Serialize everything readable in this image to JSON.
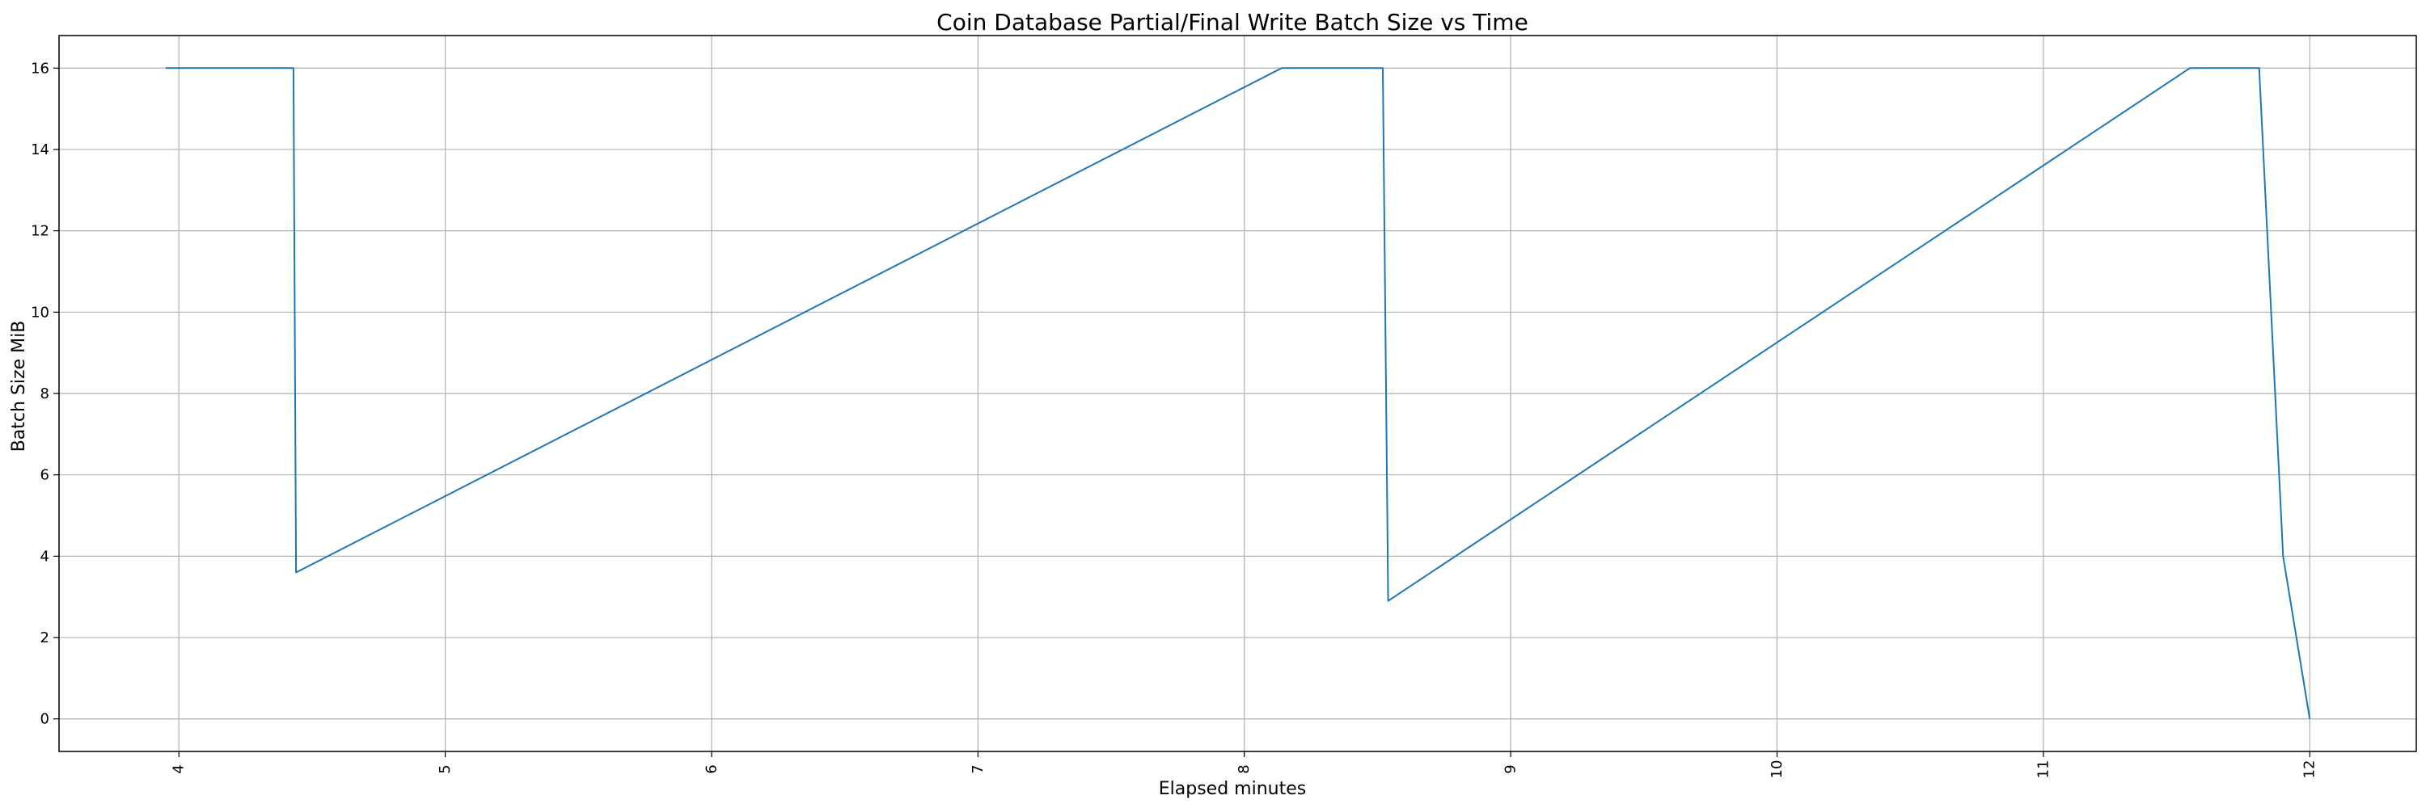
{
  "chart_data": {
    "type": "line",
    "title": "Coin Database Partial/Final Write Batch Size vs Time",
    "xlabel": "Elapsed minutes",
    "ylabel": "Batch Size MiB",
    "xlim": [
      3.55,
      12.4
    ],
    "ylim": [
      -0.8,
      16.8
    ],
    "xticks": [
      4,
      5,
      6,
      7,
      8,
      9,
      10,
      11,
      12
    ],
    "yticks": [
      0,
      2,
      4,
      6,
      8,
      10,
      12,
      14,
      16
    ],
    "grid": true,
    "series": [
      {
        "color": "#1f77b4",
        "x": [
          3.95,
          4.43,
          4.44,
          8.14,
          8.52,
          8.54,
          11.55,
          11.81,
          11.9,
          12.0
        ],
        "y": [
          16,
          16,
          3.6,
          16,
          16,
          2.9,
          16,
          16,
          4.0,
          0
        ]
      }
    ]
  }
}
